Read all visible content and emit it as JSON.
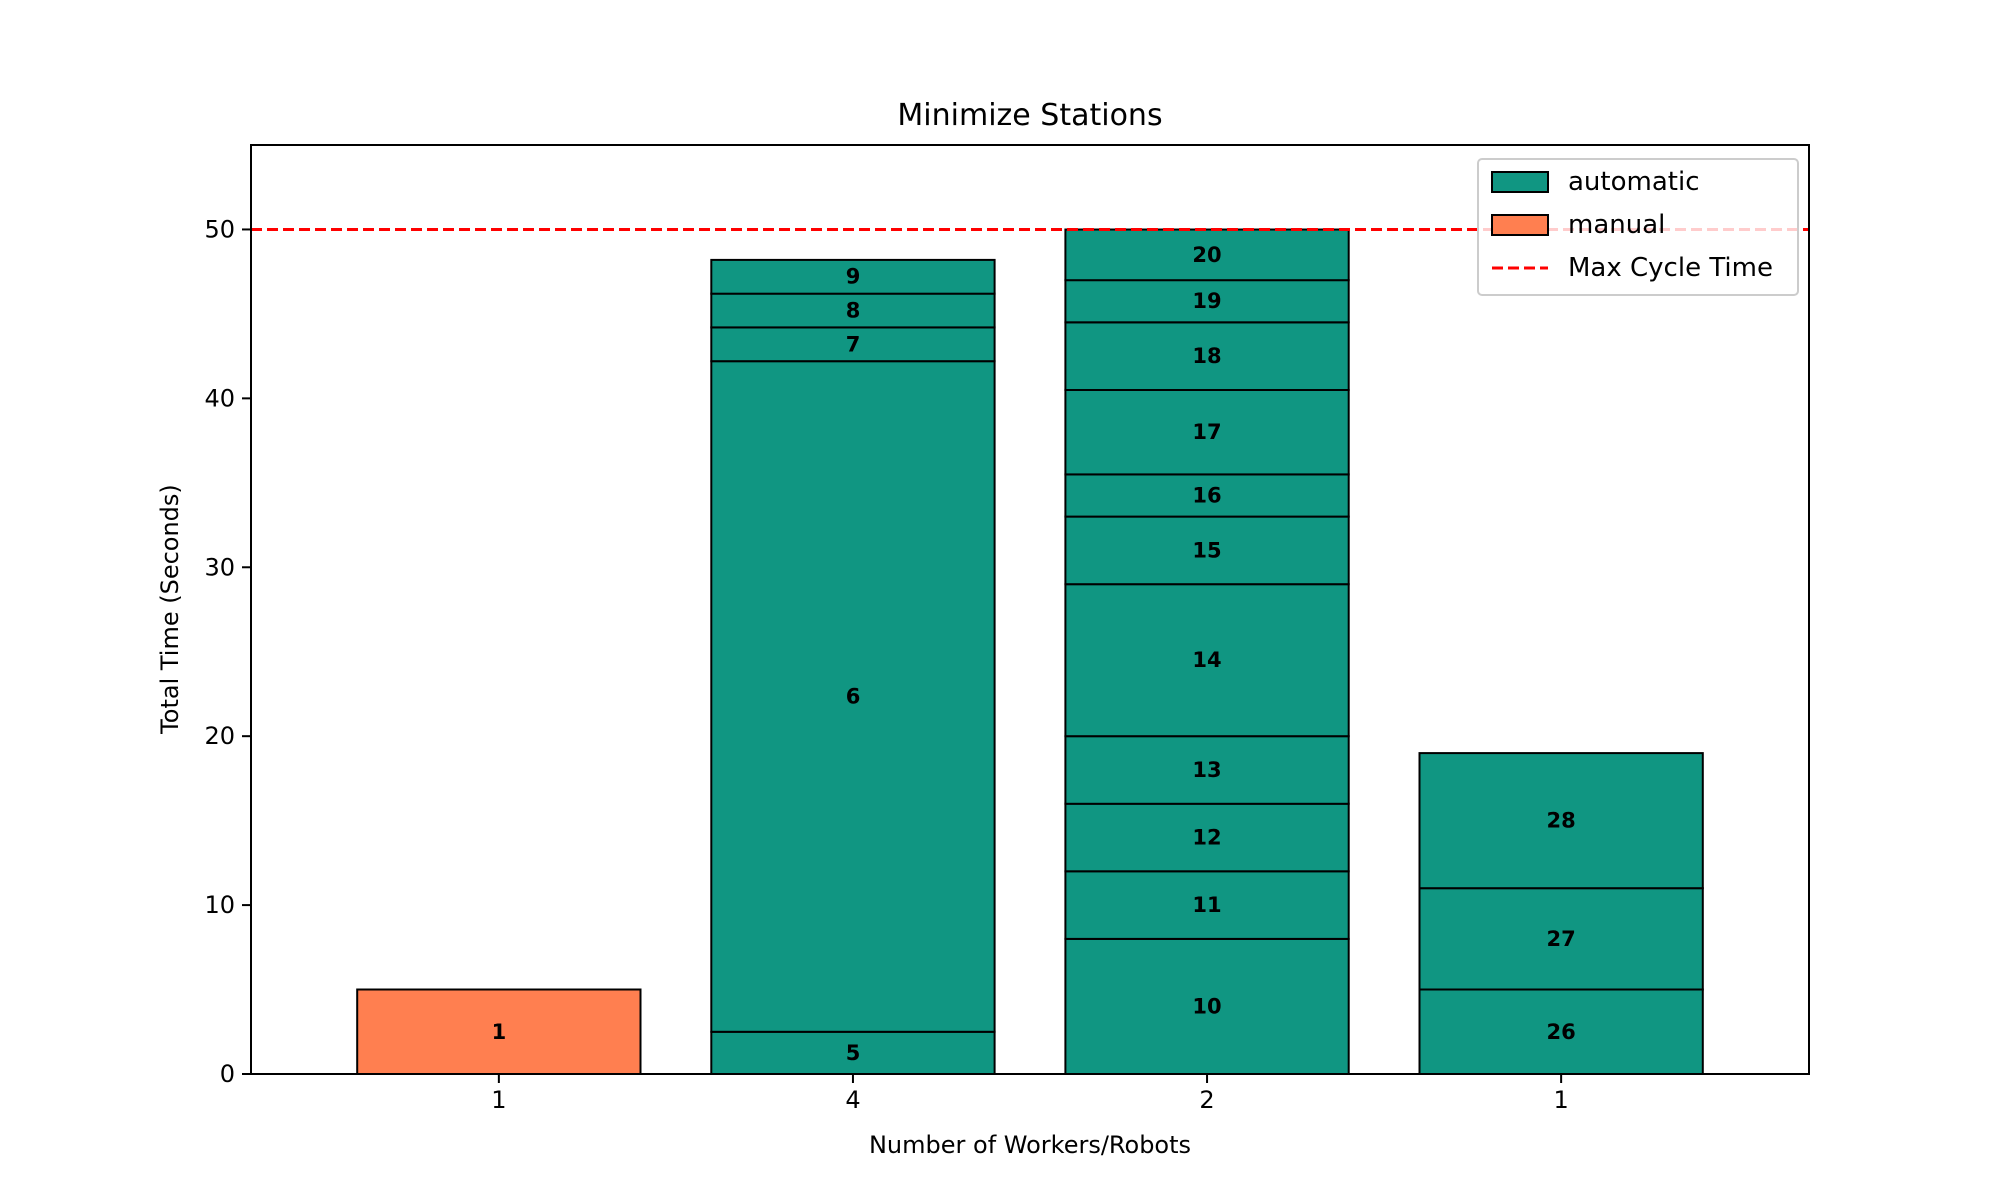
{
  "chart_data": {
    "type": "bar",
    "stacked": true,
    "title": "Minimize Stations",
    "xlabel": "Number of Workers/Robots",
    "ylabel": "Total Time (Seconds)",
    "ylim": [
      0,
      55
    ],
    "yticks": [
      0,
      10,
      20,
      30,
      40,
      50
    ],
    "grid": false,
    "legend_position": "top-right",
    "categories": [
      "1",
      "4",
      "2",
      "1"
    ],
    "colors": {
      "automatic": "#109682",
      "manual": "#ff7f50",
      "max_line": "#ff0000"
    },
    "reference_line": {
      "name": "Max Cycle Time",
      "value": 50
    },
    "legend": [
      "automatic",
      "manual",
      "Max Cycle Time"
    ],
    "stacks": [
      {
        "category": "1",
        "segments": [
          {
            "label": "1",
            "value": 5,
            "type": "manual"
          }
        ]
      },
      {
        "category": "4",
        "segments": [
          {
            "label": "5",
            "value": 2.5,
            "type": "automatic"
          },
          {
            "label": "6",
            "value": 39.7,
            "type": "automatic"
          },
          {
            "label": "7",
            "value": 2.0,
            "type": "automatic"
          },
          {
            "label": "8",
            "value": 2.0,
            "type": "automatic"
          },
          {
            "label": "9",
            "value": 2.0,
            "type": "automatic"
          }
        ]
      },
      {
        "category": "2",
        "segments": [
          {
            "label": "10",
            "value": 8,
            "type": "automatic"
          },
          {
            "label": "11",
            "value": 4,
            "type": "automatic"
          },
          {
            "label": "12",
            "value": 4,
            "type": "automatic"
          },
          {
            "label": "13",
            "value": 4,
            "type": "automatic"
          },
          {
            "label": "14",
            "value": 9,
            "type": "automatic"
          },
          {
            "label": "15",
            "value": 4,
            "type": "automatic"
          },
          {
            "label": "16",
            "value": 2.5,
            "type": "automatic"
          },
          {
            "label": "17",
            "value": 5,
            "type": "automatic"
          },
          {
            "label": "18",
            "value": 4,
            "type": "automatic"
          },
          {
            "label": "19",
            "value": 2.5,
            "type": "automatic"
          },
          {
            "label": "20",
            "value": 3,
            "type": "automatic"
          }
        ]
      },
      {
        "category": "1",
        "segments": [
          {
            "label": "26",
            "value": 5,
            "type": "automatic"
          },
          {
            "label": "27",
            "value": 6,
            "type": "automatic"
          },
          {
            "label": "28",
            "value": 8,
            "type": "automatic"
          }
        ]
      }
    ]
  }
}
